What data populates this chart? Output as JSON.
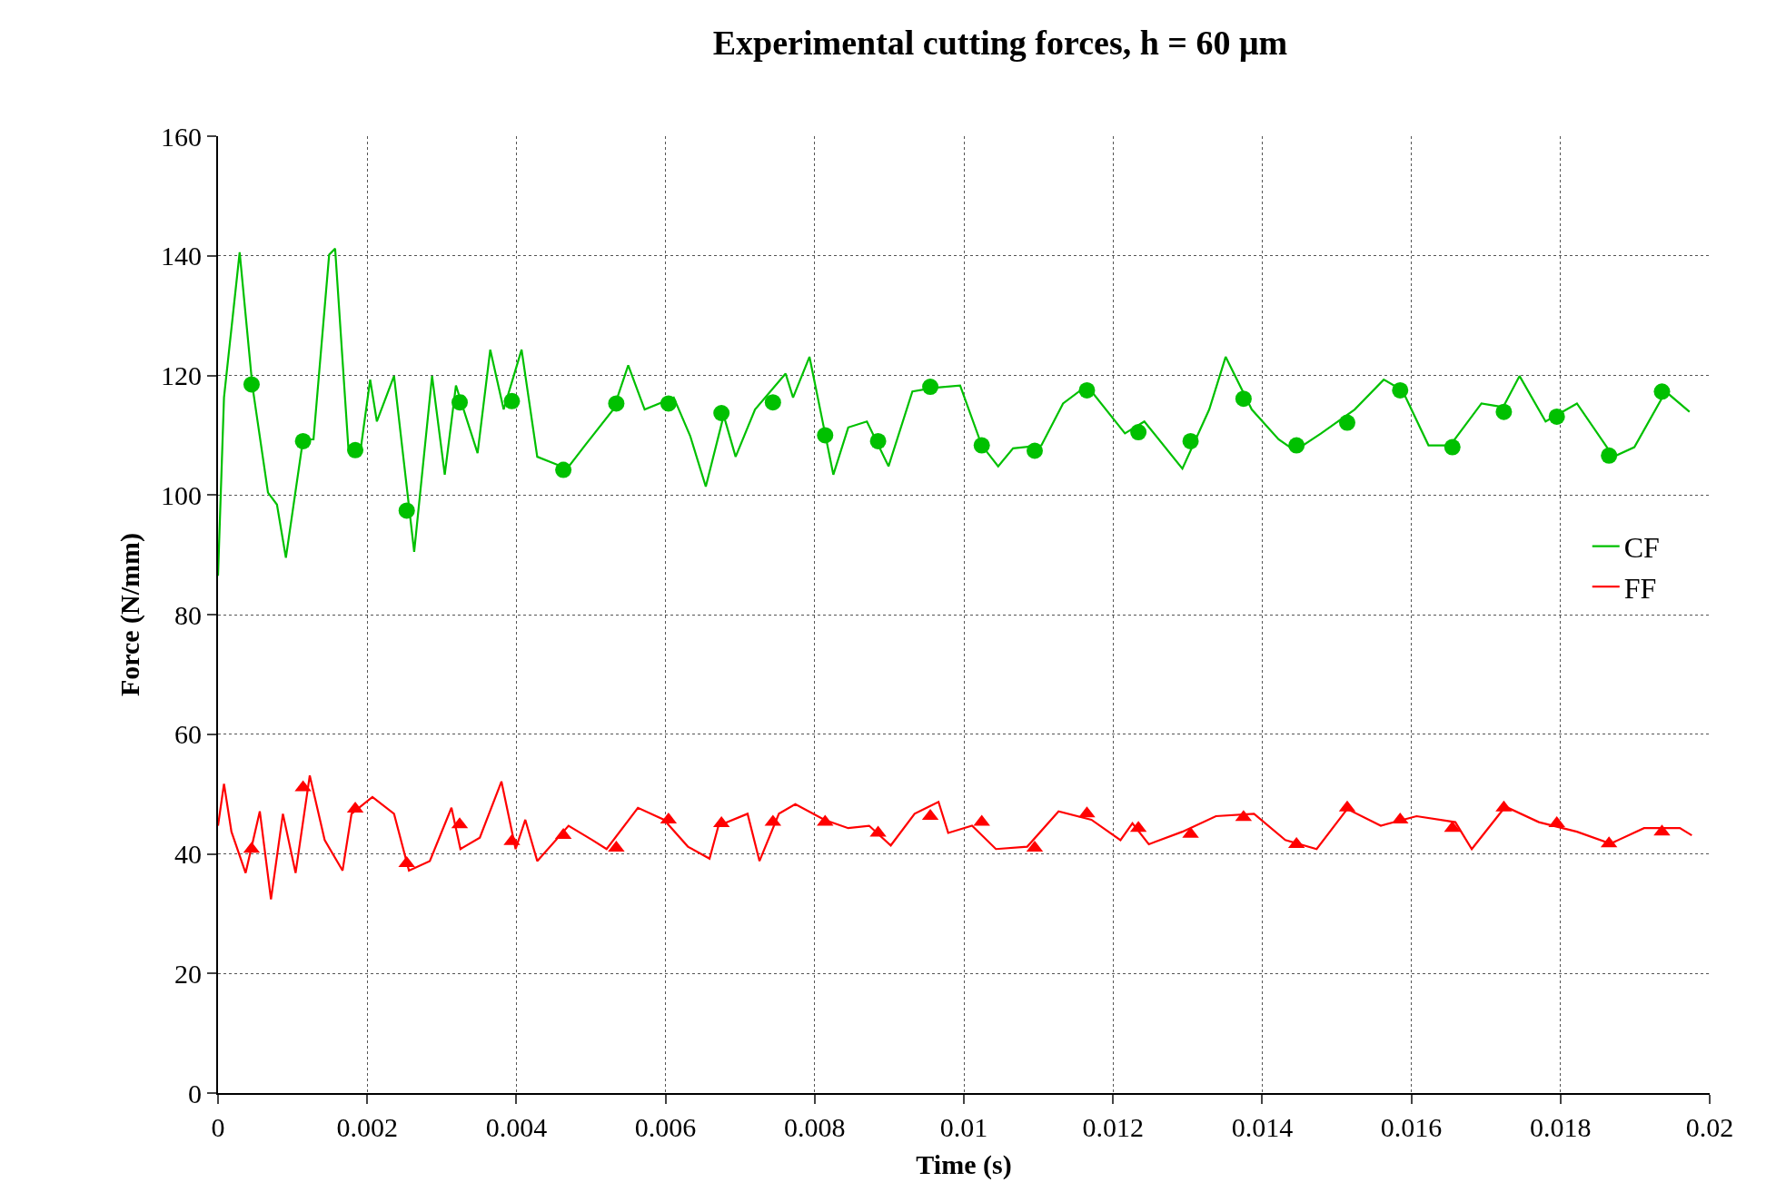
{
  "chart_data": {
    "type": "line",
    "title": "Experimental cutting forces, h = 60 μm",
    "xlabel": "Time (s)",
    "ylabel": "Force (N/mm)",
    "xlim": [
      0,
      0.02
    ],
    "xticks": [
      0,
      0.002,
      0.004,
      0.006,
      0.008,
      0.01,
      0.012,
      0.014,
      0.016,
      0.018,
      0.02
    ],
    "ylim": [
      0,
      160
    ],
    "yticks": [
      0,
      20,
      40,
      60,
      80,
      100,
      120,
      140,
      160
    ],
    "grid": true,
    "legend": "right",
    "series": [
      {
        "name": "CF",
        "color": "#00c000",
        "marker": "none",
        "x": [
          0,
          8e-05,
          0.00029,
          0.00046,
          0.00067,
          0.00079,
          0.00091,
          0.00114,
          0.00128,
          0.00149,
          0.00157,
          0.00175,
          0.00191,
          0.00204,
          0.00213,
          0.00236,
          0.00263,
          0.00287,
          0.00304,
          0.00319,
          0.00348,
          0.00365,
          0.00383,
          0.00407,
          0.00428,
          0.00468,
          0.00492,
          0.0053,
          0.0055,
          0.00572,
          0.00611,
          0.00633,
          0.00654,
          0.00678,
          0.00694,
          0.0072,
          0.00761,
          0.00771,
          0.00793,
          0.00809,
          0.00825,
          0.00845,
          0.0087,
          0.00899,
          0.00931,
          0.00957,
          0.00995,
          0.01024,
          0.01046,
          0.01066,
          0.01104,
          0.01133,
          0.01165,
          0.01216,
          0.01242,
          0.01293,
          0.01329,
          0.01351,
          0.01386,
          0.01422,
          0.01444,
          0.01479,
          0.01524,
          0.01563,
          0.01588,
          0.01623,
          0.01652,
          0.01694,
          0.01723,
          0.01745,
          0.0178,
          0.01822,
          0.01871,
          0.01899,
          0.01941,
          0.01973
        ],
        "values": [
          86.5,
          116.3,
          140.6,
          118.3,
          100.4,
          98.4,
          89.5,
          109.3,
          109.3,
          140.2,
          141.2,
          107.4,
          107.4,
          119.3,
          112.3,
          119.9,
          90.5,
          119.9,
          103.4,
          118.3,
          107,
          124.3,
          114.3,
          124.3,
          106.4,
          104.4,
          108.3,
          114.3,
          121.7,
          114.3,
          116.3,
          109.9,
          101.4,
          113.3,
          106.4,
          114.3,
          120.3,
          116.3,
          123.1,
          113.3,
          103.4,
          111.3,
          112.3,
          104.8,
          117.3,
          117.9,
          118.3,
          108.3,
          104.8,
          107.8,
          108.3,
          115.3,
          118.3,
          110.3,
          112.3,
          104.4,
          114.3,
          123.1,
          114.3,
          109.3,
          107.4,
          110.3,
          114.3,
          119.3,
          117.5,
          108.3,
          108.3,
          115.3,
          114.7,
          119.9,
          112.3,
          115.3,
          106.4,
          108,
          117.3,
          113.9
        ]
      },
      {
        "color": "#00c000",
        "type": "scatter",
        "marker": "circle",
        "x": [
          0.00045,
          0.00114,
          0.00184,
          0.00253,
          0.00324,
          0.00394,
          0.00463,
          0.00534,
          0.00604,
          0.00675,
          0.00744,
          0.00814,
          0.00885,
          0.00955,
          0.01024,
          0.01095,
          0.01165,
          0.01234,
          0.01304,
          0.01375,
          0.01446,
          0.01514,
          0.01585,
          0.01655,
          0.01724,
          0.01795,
          0.01865,
          0.01936
        ],
        "values": [
          118.5,
          109,
          107.5,
          97.4,
          115.5,
          115.7,
          104.2,
          115.3,
          115.3,
          113.7,
          115.5,
          110,
          109,
          118.1,
          108.3,
          107.4,
          117.5,
          110.5,
          109,
          116.1,
          108.3,
          112.1,
          117.5,
          108,
          113.9,
          113.1,
          106.6,
          117.3
        ]
      },
      {
        "name": "FF",
        "color": "#ff0000",
        "marker": "none",
        "x": [
          0,
          8e-05,
          0.00018,
          0.00037,
          0.00056,
          0.00071,
          0.00087,
          0.00104,
          0.00123,
          0.00143,
          0.00167,
          0.00179,
          0.00207,
          0.00236,
          0.00256,
          0.00284,
          0.00313,
          0.00325,
          0.00351,
          0.0038,
          0.00399,
          0.00412,
          0.00428,
          0.0047,
          0.00502,
          0.00521,
          0.00563,
          0.00598,
          0.0063,
          0.00659,
          0.00671,
          0.0071,
          0.00726,
          0.00752,
          0.00774,
          0.00813,
          0.00845,
          0.00873,
          0.00902,
          0.00934,
          0.00966,
          0.00979,
          0.01011,
          0.01043,
          0.01085,
          0.01127,
          0.01171,
          0.0121,
          0.01226,
          0.01248,
          0.01293,
          0.01338,
          0.01389,
          0.01431,
          0.01473,
          0.01514,
          0.01559,
          0.01607,
          0.01659,
          0.01681,
          0.01726,
          0.01771,
          0.01822,
          0.01867,
          0.01912,
          0.0196,
          0.01976
        ],
        "values": [
          44.7,
          51.7,
          43.7,
          36.8,
          47.1,
          32.4,
          46.7,
          36.8,
          53.1,
          42.3,
          37.2,
          46.7,
          49.5,
          46.7,
          37.2,
          38.8,
          47.7,
          40.8,
          42.7,
          52.1,
          40.8,
          45.7,
          38.8,
          44.7,
          42.3,
          40.8,
          47.7,
          45.7,
          41.2,
          39.2,
          44.7,
          46.7,
          38.8,
          46.7,
          48.3,
          45.7,
          44.3,
          44.7,
          41.4,
          46.7,
          48.7,
          43.5,
          44.7,
          40.8,
          41.2,
          47.1,
          45.7,
          42.3,
          45.1,
          41.6,
          43.7,
          46.3,
          46.7,
          42.3,
          40.8,
          47.5,
          44.7,
          46.3,
          45.3,
          40.8,
          47.9,
          45.3,
          43.7,
          41.7,
          44.3,
          44.3,
          43.1
        ]
      },
      {
        "color": "#ff0000",
        "type": "scatter",
        "marker": "triangle",
        "x": [
          0.00045,
          0.00114,
          0.00184,
          0.00253,
          0.00324,
          0.00394,
          0.00463,
          0.00534,
          0.00604,
          0.00675,
          0.00744,
          0.00814,
          0.00885,
          0.00955,
          0.01024,
          0.01095,
          0.01165,
          0.01234,
          0.01304,
          0.01375,
          0.01446,
          0.01514,
          0.01585,
          0.01655,
          0.01724,
          0.01795,
          0.01865,
          0.01936
        ],
        "values": [
          40.8,
          51.1,
          47.5,
          38.4,
          44.9,
          42.1,
          43.1,
          41,
          45.7,
          45.1,
          45.3,
          45.3,
          43.5,
          46.3,
          45.3,
          41,
          46.7,
          44.3,
          43.3,
          46.1,
          41.6,
          47.7,
          45.7,
          44.3,
          47.7,
          45.1,
          41.7,
          43.7
        ]
      }
    ]
  }
}
